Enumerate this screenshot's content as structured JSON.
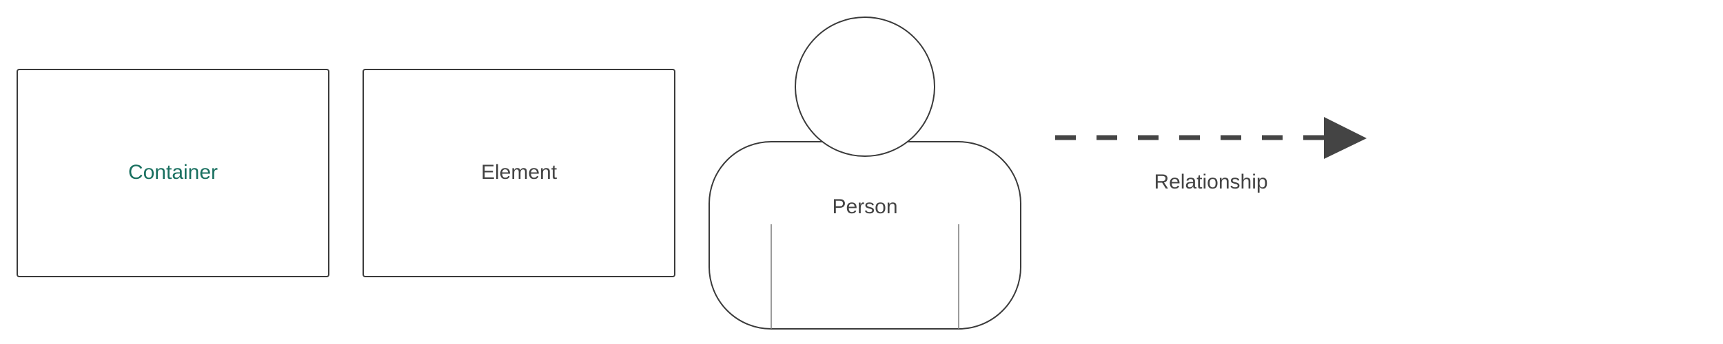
{
  "legend": {
    "container": {
      "label": "Container",
      "text_color": "#1a7060"
    },
    "element": {
      "label": "Element",
      "text_color": "#444444"
    },
    "person": {
      "label": "Person",
      "text_color": "#444444"
    },
    "relationship": {
      "label": "Relationship",
      "text_color": "#444444",
      "line_color": "#444444",
      "line_style": "dashed"
    }
  },
  "colors": {
    "stroke": "#3a3a3a",
    "background": "#ffffff"
  }
}
